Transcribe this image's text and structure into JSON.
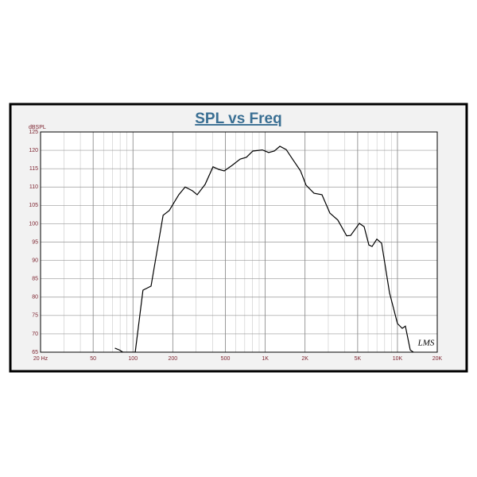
{
  "chart_data": {
    "type": "line",
    "title": "SPL vs Freq",
    "y_label": "dBSPL",
    "watermark": "LMS",
    "log_x": true,
    "grid": true,
    "xlim": [
      20,
      20000
    ],
    "ylim": [
      65,
      125
    ],
    "xticks": [
      {
        "value": 20,
        "label": "20 Hz"
      },
      50,
      100,
      200,
      500,
      {
        "value": 1000,
        "label": "1K"
      },
      {
        "value": 2000,
        "label": "2K"
      },
      {
        "value": 5000,
        "label": "5K"
      },
      {
        "value": 10000,
        "label": "10K"
      },
      {
        "value": 20000,
        "label": "20K"
      }
    ],
    "yticks": [
      65,
      70,
      75,
      80,
      85,
      90,
      95,
      100,
      105,
      110,
      115,
      120,
      125
    ],
    "series": [
      {
        "name": "SPL",
        "color": "#000000",
        "x": [
          73,
          79,
          84,
          104,
          119,
          137,
          169,
          188,
          222,
          248,
          281,
          306,
          351,
          403,
          444,
          490,
          562,
          646,
          721,
          806,
          951,
          1062,
          1172,
          1291,
          1442,
          1610,
          1849,
          2037,
          2339,
          2686,
          3084,
          3541,
          4130,
          4426,
          5152,
          5598,
          6083,
          6430,
          6985,
          7589,
          8710,
          10002,
          10866,
          11483,
          12500,
          13213
        ],
        "values": [
          66.1,
          65.6,
          65,
          65,
          81.9,
          83,
          102.3,
          103.6,
          107.9,
          110,
          109,
          107.9,
          110.7,
          115.5,
          114.8,
          114.4,
          115.9,
          117.6,
          118.1,
          119.8,
          120.1,
          119.4,
          119.8,
          121.1,
          120.2,
          117.6,
          114.4,
          110.5,
          108.3,
          107.9,
          102.9,
          101,
          96.7,
          96.8,
          100.1,
          99.2,
          94.2,
          93.8,
          95.8,
          94.7,
          81.2,
          72.8,
          71.5,
          72.1,
          65.6,
          65
        ]
      }
    ]
  }
}
